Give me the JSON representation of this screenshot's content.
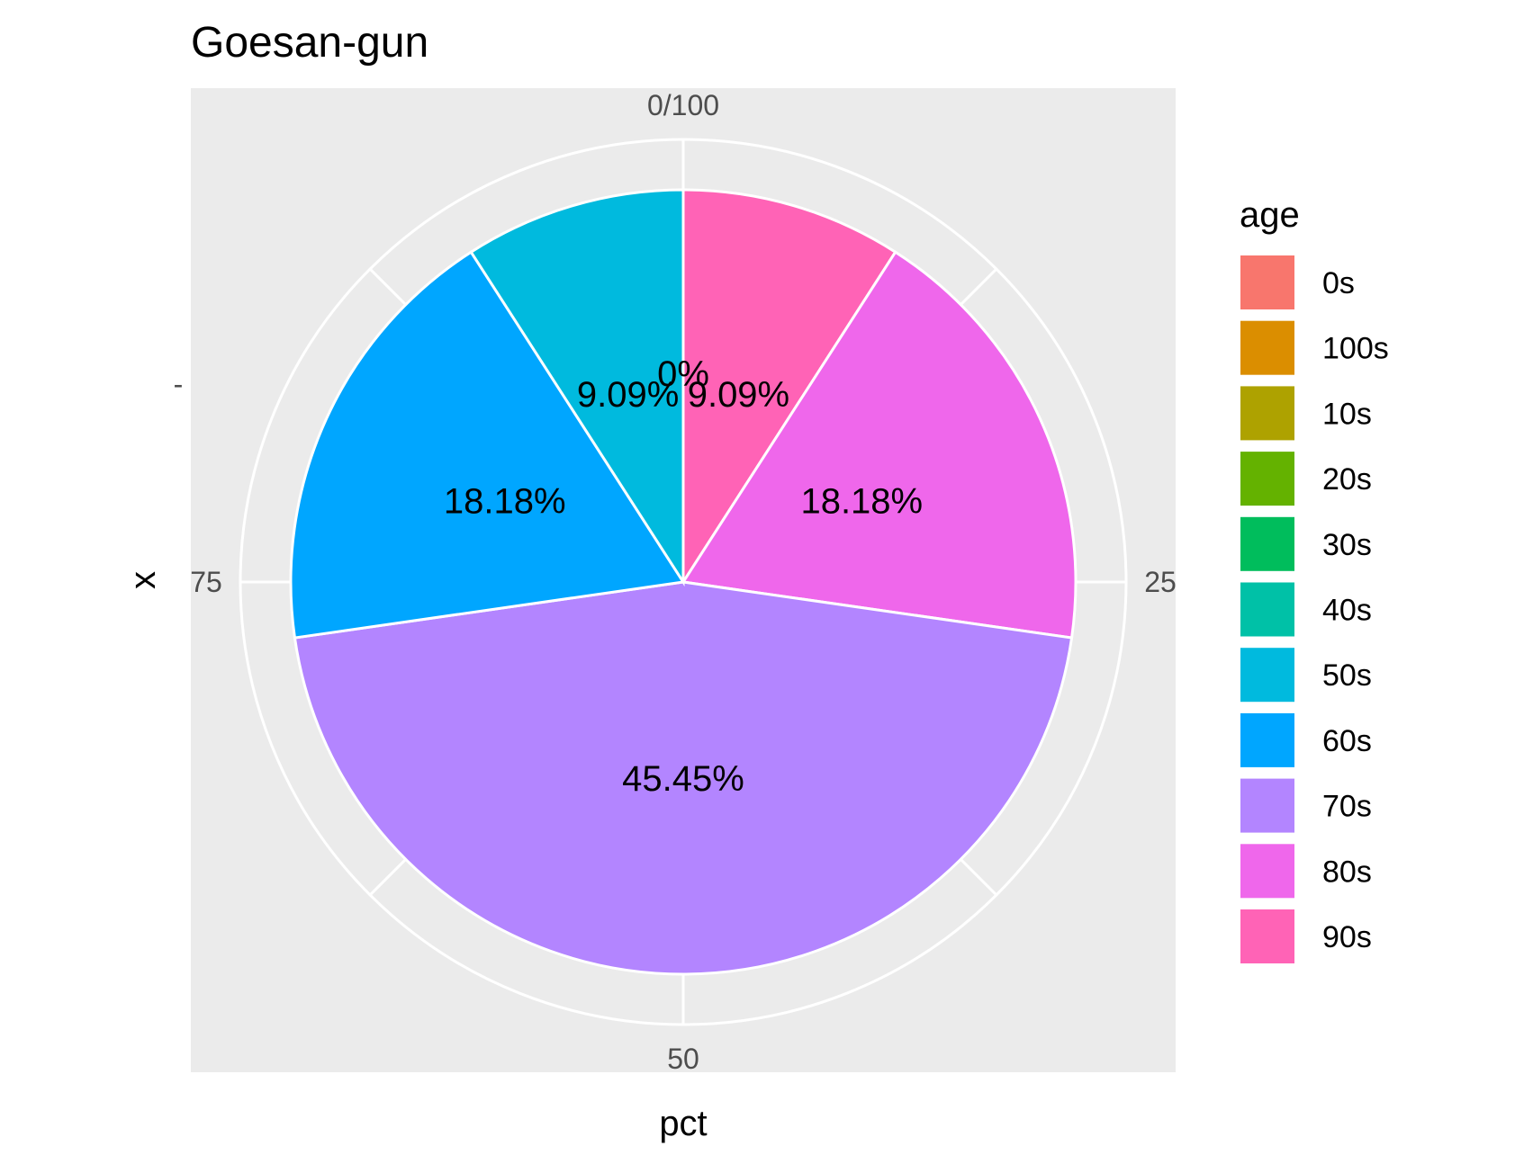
{
  "chart_data": {
    "type": "pie",
    "title": "Goesan-gun",
    "xlabel": "pct",
    "ylabel": "x",
    "y_tick": "-",
    "theta_ticks": [
      "0/100",
      "25",
      "50",
      "75"
    ],
    "theta_tick_values": [
      0,
      25,
      50,
      75
    ],
    "legend": {
      "title": "age",
      "placement": "right"
    },
    "slices": [
      {
        "name": "0s",
        "value": 0,
        "label": "",
        "color": "#F8766D"
      },
      {
        "name": "100s",
        "value": 0,
        "label": "",
        "color": "#DB8E00"
      },
      {
        "name": "10s",
        "value": 0,
        "label": "",
        "color": "#AEA200"
      },
      {
        "name": "20s",
        "value": 0,
        "label": "",
        "color": "#64B200"
      },
      {
        "name": "30s",
        "value": 0,
        "label": "",
        "color": "#00BD5C"
      },
      {
        "name": "40s",
        "value": 0,
        "label": "",
        "color": "#00C1A7"
      },
      {
        "name": "50s",
        "value": 9.09,
        "label": "9.09%",
        "color": "#00BADE"
      },
      {
        "name": "60s",
        "value": 18.18,
        "label": "18.18%",
        "color": "#00A6FF"
      },
      {
        "name": "70s",
        "value": 45.45,
        "label": "45.45%",
        "color": "#B385FF"
      },
      {
        "name": "80s",
        "value": 18.18,
        "label": "18.18%",
        "color": "#EF67EB"
      },
      {
        "name": "90s",
        "value": 9.09,
        "label": "9.09%",
        "color": "#FF63B6"
      }
    ],
    "zero_label": "0%",
    "panel_background": "#EBEBEB",
    "grid_color": "#FFFFFF",
    "grid": true
  }
}
